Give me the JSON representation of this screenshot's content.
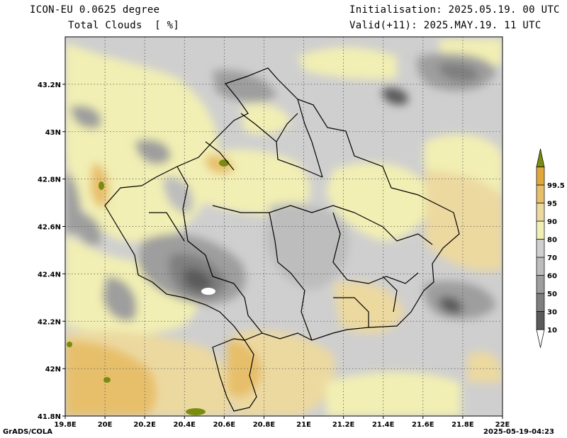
{
  "header": {
    "title_line1": "ICON-EU 0.0625 degree",
    "title_line2": "Total Clouds  [ %]",
    "init_line": "Initialisation: 2025.05.19. 00 UTC",
    "valid_line": "Valid(+11): 2025.MAY.19. 11 UTC"
  },
  "footer": {
    "credit": "GrADS/COLA",
    "timestamp": "2025-05-19-04:23"
  },
  "map": {
    "lon_range": [
      19.8,
      22.0
    ],
    "lat_range": [
      41.8,
      43.4
    ],
    "x_ticks": [
      "19.8E",
      "20E",
      "20.2E",
      "20.4E",
      "20.6E",
      "20.8E",
      "21E",
      "21.2E",
      "21.4E",
      "21.6E",
      "21.8E",
      "22E"
    ],
    "y_ticks": [
      "41.8N",
      "42N",
      "42.2N",
      "42.4N",
      "42.6N",
      "42.8N",
      "43N",
      "43.2N"
    ],
    "gridlines": true
  },
  "colorbar": {
    "labels": [
      "10",
      "30",
      "50",
      "60",
      "70",
      "80",
      "90",
      "95",
      "99.5"
    ],
    "colors": [
      "#ffffff",
      "#5a5a5a",
      "#7f7f7f",
      "#9e9e9e",
      "#bdbdbd",
      "#cfcfcf",
      "#f2efb4",
      "#ecd9a0",
      "#e7bf6a",
      "#e0a83a",
      "#7a8c10"
    ]
  }
}
